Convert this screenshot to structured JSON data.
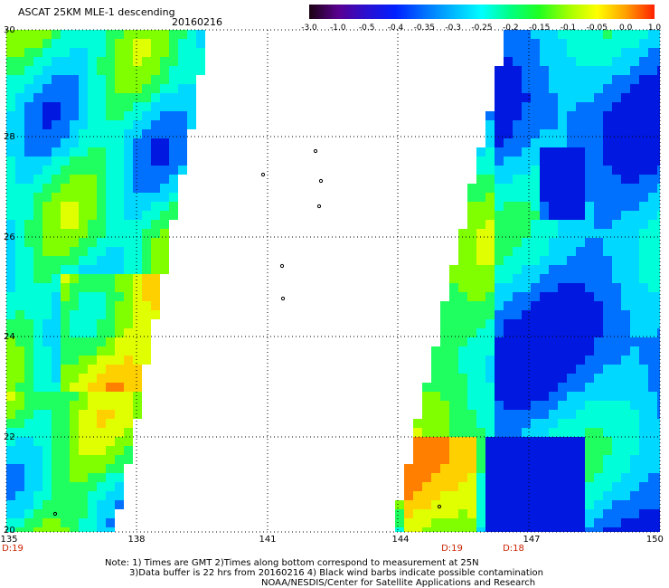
{
  "title": "ASCAT 25KM MLE-1 descending",
  "date": "20160216",
  "colorbar": {
    "labels": [
      "-3.0",
      "-1.0",
      "-0.5",
      "-0.4",
      "-0.35",
      "-0.3",
      "-0.25",
      "-0.2",
      "-0.15",
      "-0.1",
      "-0.05",
      "0.0",
      "1.0"
    ],
    "colors": [
      "#1a0010",
      "#5a0090",
      "#2a10d0",
      "#0020ff",
      "#0070ff",
      "#00b8ff",
      "#00ffff",
      "#00ff80",
      "#20ff20",
      "#a0ff00",
      "#ffff00",
      "#ffa000",
      "#ff2000"
    ]
  },
  "axes": {
    "lat_ticks": [
      "30",
      "28",
      "26",
      "24",
      "22",
      "20"
    ],
    "lon_ticks": [
      "135",
      "138",
      "141",
      "144",
      "147",
      "150"
    ],
    "time_labels": [
      "D:19",
      "D:19",
      "D:18"
    ]
  },
  "colors": {
    "grid": "#000000",
    "label_red": "#cc2200"
  },
  "notes": {
    "line1": "Note: 1) Times are GMT 2)Times along bottom correspond to measurement at 25N",
    "line2": "3)Data buffer is 22 hrs from 20160216 4) Black wind barbs indicate possible contamination",
    "line3": "NOAA/NESDIS/Center for Satellite Applications and Research"
  }
}
